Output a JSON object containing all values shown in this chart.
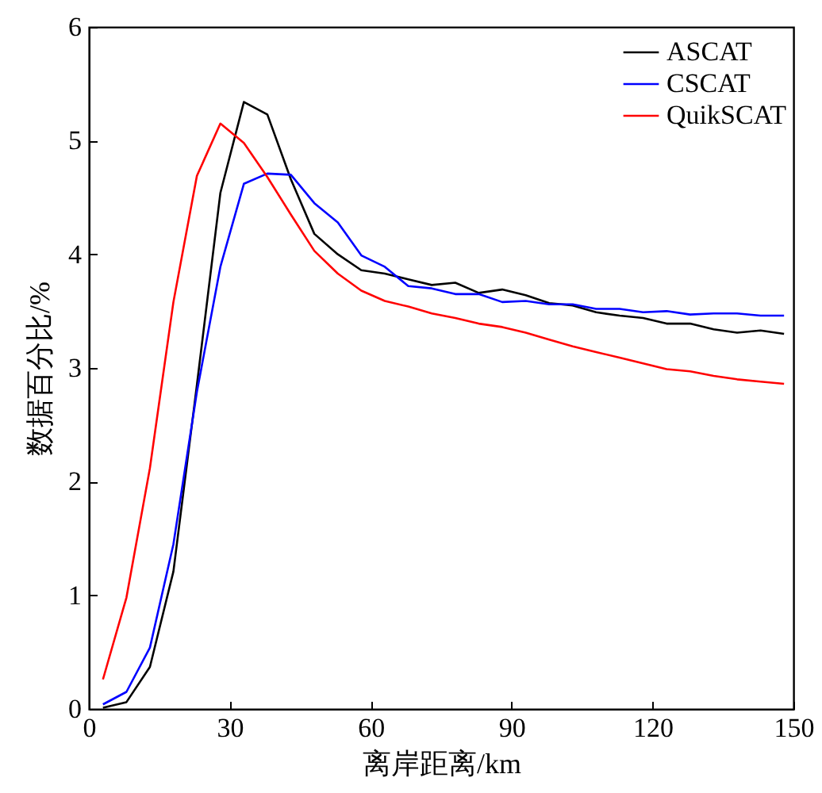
{
  "chart_data": {
    "type": "line",
    "xlabel": "离岸距离/km",
    "ylabel": "数据百分比/%",
    "x": [
      3,
      8,
      13,
      18,
      23,
      28,
      33,
      38,
      43,
      48,
      53,
      58,
      63,
      68,
      73,
      78,
      83,
      88,
      93,
      98,
      103,
      108,
      113,
      118,
      123,
      128,
      133,
      138,
      143,
      148
    ],
    "xlim": [
      0,
      150
    ],
    "xticks": [
      0,
      30,
      60,
      90,
      120,
      150
    ],
    "ylim": [
      0,
      6
    ],
    "yticks": [
      0,
      1,
      2,
      3,
      4,
      5,
      6
    ],
    "grid": false,
    "legend": "top right",
    "series": [
      {
        "name": "ASCAT",
        "color": "#000000",
        "values": [
          0.01,
          0.06,
          0.37,
          1.21,
          2.85,
          4.54,
          5.34,
          5.23,
          4.66,
          4.18,
          4.0,
          3.86,
          3.83,
          3.78,
          3.73,
          3.75,
          3.66,
          3.69,
          3.64,
          3.57,
          3.55,
          3.49,
          3.46,
          3.44,
          3.39,
          3.39,
          3.34,
          3.31,
          3.33,
          3.3
        ]
      },
      {
        "name": "CSCAT",
        "color": "#0000ff",
        "values": [
          0.04,
          0.15,
          0.54,
          1.45,
          2.79,
          3.89,
          4.62,
          4.71,
          4.7,
          4.45,
          4.28,
          3.99,
          3.89,
          3.72,
          3.7,
          3.65,
          3.65,
          3.58,
          3.59,
          3.56,
          3.56,
          3.52,
          3.52,
          3.49,
          3.5,
          3.47,
          3.48,
          3.48,
          3.46,
          3.46
        ]
      },
      {
        "name": "QuikSCAT",
        "color": "#ff0000",
        "values": [
          0.26,
          0.98,
          2.12,
          3.58,
          4.69,
          5.15,
          4.98,
          4.68,
          4.35,
          4.03,
          3.83,
          3.68,
          3.59,
          3.54,
          3.48,
          3.44,
          3.39,
          3.36,
          3.31,
          3.25,
          3.19,
          3.14,
          3.09,
          3.04,
          2.99,
          2.97,
          2.93,
          2.9,
          2.88,
          2.86
        ]
      }
    ]
  }
}
